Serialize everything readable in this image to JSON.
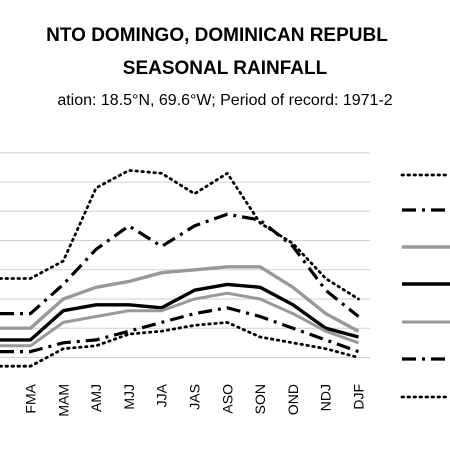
{
  "chart_data": {
    "type": "line",
    "title_line1": "NTO DOMINGO, DOMINICAN REPUBL",
    "title_line2": "SEASONAL RAINFALL",
    "subtitle": "ation: 18.5°N, 69.6°W; Period of record: 1971-2",
    "categories": [
      "FMA",
      "MAM",
      "AMJ",
      "MJJ",
      "JJA",
      "JAS",
      "ASO",
      "SON",
      "OND",
      "NDJ",
      "DJF"
    ],
    "xlabel": "",
    "ylabel": "",
    "grid": "horizontal",
    "legend_position": "right",
    "series": [
      {
        "style": "dotted",
        "color": "#000000",
        "values": [
          2.7,
          3.3,
          5.8,
          6.4,
          6.3,
          5.6,
          6.3,
          4.6,
          3.9,
          2.7,
          2.0
        ]
      },
      {
        "style": "dashdot",
        "color": "#000000",
        "values": [
          1.5,
          2.5,
          3.7,
          4.5,
          3.8,
          4.5,
          4.9,
          4.7,
          3.8,
          2.3,
          1.4
        ]
      },
      {
        "style": "solid-thick",
        "color": "#999999",
        "values": [
          1.0,
          2.0,
          2.4,
          2.6,
          2.9,
          3.0,
          3.1,
          3.1,
          2.4,
          1.5,
          0.9
        ]
      },
      {
        "style": "solid-thick",
        "color": "#000000",
        "values": [
          0.6,
          1.6,
          1.8,
          1.8,
          1.7,
          2.3,
          2.5,
          2.4,
          1.8,
          1.0,
          0.7
        ]
      },
      {
        "style": "solid",
        "color": "#999999",
        "values": [
          0.4,
          1.2,
          1.4,
          1.6,
          1.6,
          2.0,
          2.2,
          2.0,
          1.5,
          0.9,
          0.5
        ]
      },
      {
        "style": "dashdot",
        "color": "#000000",
        "values": [
          0.2,
          0.5,
          0.6,
          0.9,
          1.2,
          1.5,
          1.7,
          1.4,
          1.0,
          0.6,
          0.2
        ]
      },
      {
        "style": "dotted",
        "color": "#000000",
        "values": [
          -0.3,
          0.3,
          0.4,
          0.8,
          0.9,
          1.1,
          1.2,
          0.7,
          0.5,
          0.3,
          0.0
        ]
      }
    ],
    "ylim": [
      -0.6,
      7.2
    ]
  }
}
